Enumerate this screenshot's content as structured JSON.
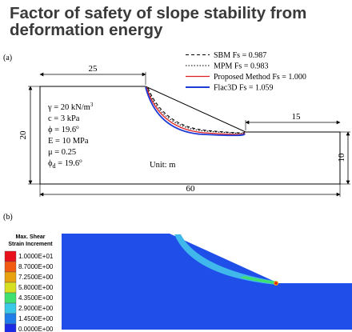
{
  "header": {
    "title_line1": "Factor of safety of slope stability from",
    "title_line2": "deformation energy"
  },
  "panel_a": {
    "label": "(a)",
    "dimensions": {
      "top_left_width": "25",
      "top_right_width": "15",
      "total_height": "20",
      "right_height": "10",
      "total_width": "60"
    },
    "properties": [
      {
        "symbol": "γ",
        "sub": "",
        "value": " = 20 kN/m",
        "sup": "3"
      },
      {
        "symbol": "c",
        "sub": "",
        "value": " = 3 kPa",
        "sup": ""
      },
      {
        "symbol": "ϕ",
        "sub": "",
        "value": " = 19.6",
        "sup": "o"
      },
      {
        "symbol": "E",
        "sub": "",
        "value": " = 10 MPa",
        "sup": ""
      },
      {
        "symbol": "μ",
        "sub": "",
        "value": " = 0.25",
        "sup": ""
      },
      {
        "symbol": "ϕ",
        "sub": "d",
        "value": " = 19.6",
        "sup": "o"
      }
    ],
    "unit_text": "Unit: m",
    "legend": [
      {
        "label": "SBM Fs = 0.987",
        "color": "#000000",
        "style": "dashed"
      },
      {
        "label": "MPM Fs = 0.983",
        "color": "#000000",
        "style": "dotted"
      },
      {
        "label": "Proposed Method Fs = 1.000",
        "color": "#e02020",
        "style": "solid"
      },
      {
        "label": "Flac3D Fs = 1.059",
        "color": "#1f3bd6",
        "style": "solid"
      }
    ]
  },
  "panel_b": {
    "label": "(b)",
    "colorbar_title_line1": "Max. Shear",
    "colorbar_title_line2": "Strain Increment",
    "colorbar": [
      {
        "label": "1.0000E+01",
        "color": "#e8101a"
      },
      {
        "label": "8.7000E+00",
        "color": "#f25a12"
      },
      {
        "label": "7.2500E+00",
        "color": "#e8a20e"
      },
      {
        "label": "5.8000E+00",
        "color": "#d6e020"
      },
      {
        "label": "4.3500E+00",
        "color": "#40e070"
      },
      {
        "label": "2.9000E+00",
        "color": "#39c8e8"
      },
      {
        "label": "1.4500E+00",
        "color": "#1e7de8"
      },
      {
        "label": "0.0000E+00",
        "color": "#1c2ae6"
      }
    ],
    "model_color": "#1f4fe8",
    "band_color": "#40b8ec"
  }
}
